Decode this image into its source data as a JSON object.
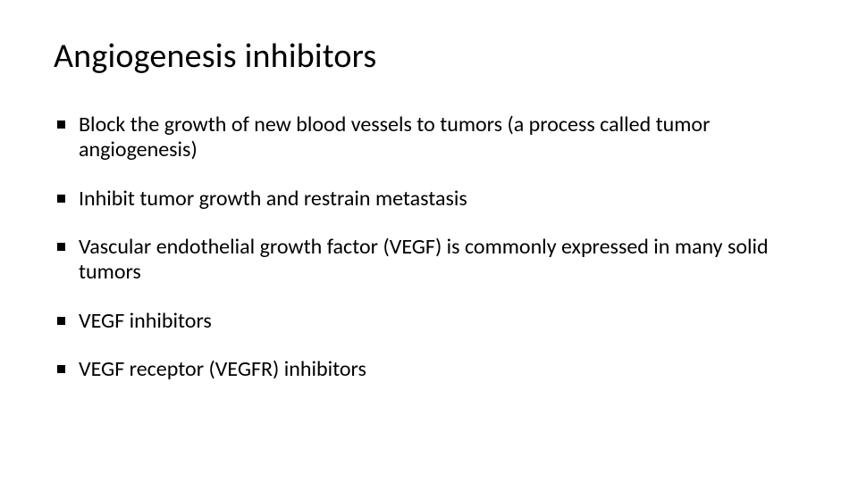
{
  "slide": {
    "title": "Angiogenesis inhibitors",
    "title_fontsize": 38,
    "title_color": "#000000",
    "background_color": "#ffffff",
    "bullet_marker": "square",
    "bullet_color": "#000000",
    "body_fontsize": 24,
    "body_color": "#000000",
    "font_family": "Calibri",
    "bullets": [
      "Block the growth of new blood vessels to tumors (a process called tumor angiogenesis)",
      "Inhibit tumor growth and restrain metastasis",
      "Vascular endothelial growth factor (VEGF) is commonly expressed in many solid tumors",
      "VEGF inhibitors",
      "VEGF receptor (VEGFR) inhibitors"
    ]
  }
}
